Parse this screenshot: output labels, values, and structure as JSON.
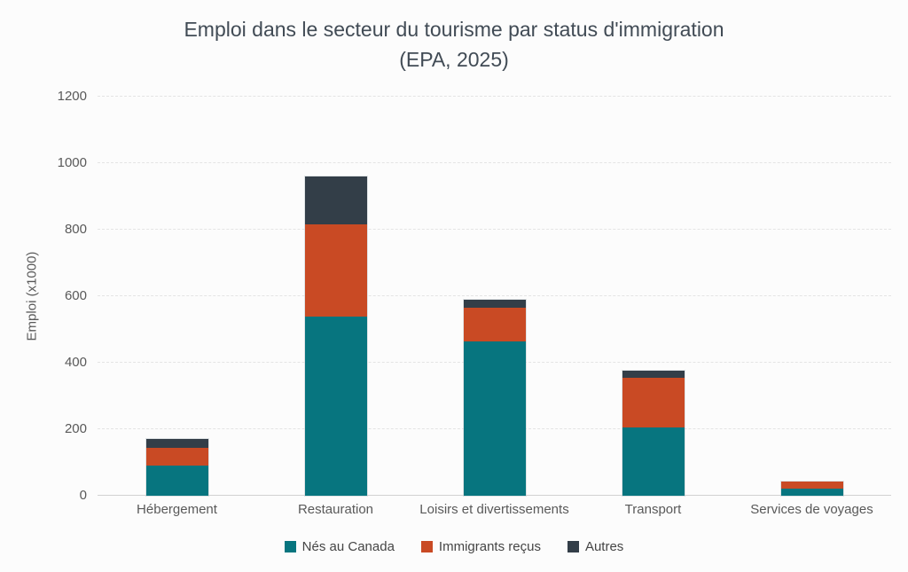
{
  "title": {
    "line1": "Emploi dans le secteur du tourisme par status d'immigration",
    "line2": "(EPA, 2025)"
  },
  "chart_data": {
    "type": "bar",
    "stacked": true,
    "title": "Emploi dans le secteur du tourisme par status d'immigration (EPA, 2025)",
    "categories": [
      "Hébergement",
      "Restauration",
      "Loisirs et divertissements",
      "Transport",
      "Services de voyages"
    ],
    "series": [
      {
        "name": "Nés au Canada",
        "color": "#07757f",
        "values": [
          90,
          540,
          465,
          205,
          22
        ]
      },
      {
        "name": "Immigrants reçus",
        "color": "#c94a24",
        "values": [
          55,
          275,
          100,
          150,
          20
        ]
      },
      {
        "name": "Autres",
        "color": "#333e48",
        "values": [
          25,
          145,
          25,
          20,
          2
        ]
      }
    ],
    "totals": [
      170,
      960,
      590,
      375,
      44
    ],
    "xlabel": "",
    "ylabel": "Emploi (x1000)",
    "ylim": [
      0,
      1200
    ],
    "yticks": [
      0,
      200,
      400,
      600,
      800,
      1000,
      1200
    ],
    "grid": true,
    "legend_position": "bottom"
  },
  "colors": {
    "background": "#fcfcfc",
    "title_text": "#414b55",
    "axis_text": "#595959",
    "legend_text": "#454545",
    "gridline": "#e4e4e4",
    "axis_line": "#d2d2d2"
  }
}
